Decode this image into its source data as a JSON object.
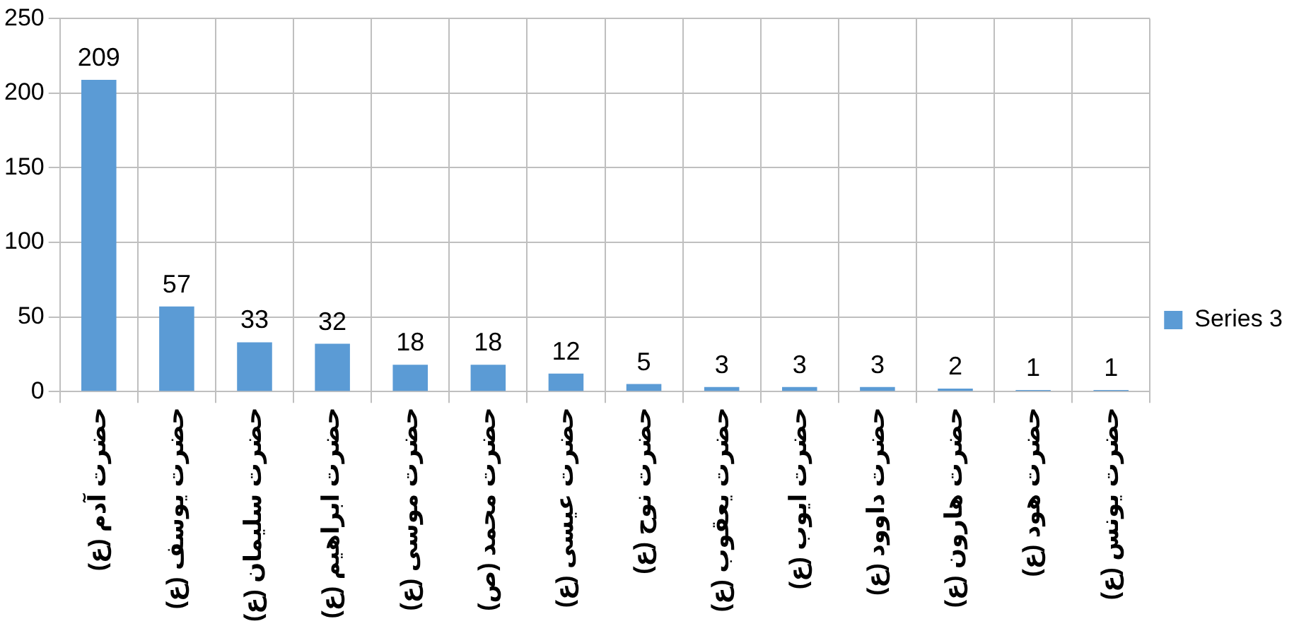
{
  "chart_data": {
    "type": "bar",
    "categories": [
      "حضرت آدم (ع)",
      "حضرت یوسف (ع)",
      "حضرت سلیمان (ع)",
      "حضرت ابراهیم (ع)",
      "حضرت موسی (ع)",
      "حضرت محمد (ص)",
      "حضرت عیسی (ع)",
      "حضرت نوح (ع)",
      "حضرت یعقوب (ع)",
      "حضرت ایوب (ع)",
      "حضرت داوود (ع)",
      "حضرت هارون (ع)",
      "حضرت هود (ع)",
      "حضرت یونس (ع)"
    ],
    "series": [
      {
        "name": "Series 3",
        "color": "#5b9bd5",
        "values": [
          209,
          57,
          33,
          32,
          18,
          18,
          12,
          5,
          3,
          3,
          3,
          2,
          1,
          1
        ]
      }
    ],
    "ylim": [
      0,
      250
    ],
    "yticks": [
      0,
      50,
      100,
      150,
      200,
      250
    ],
    "grid": true,
    "legend": "right",
    "data_labels": true
  }
}
